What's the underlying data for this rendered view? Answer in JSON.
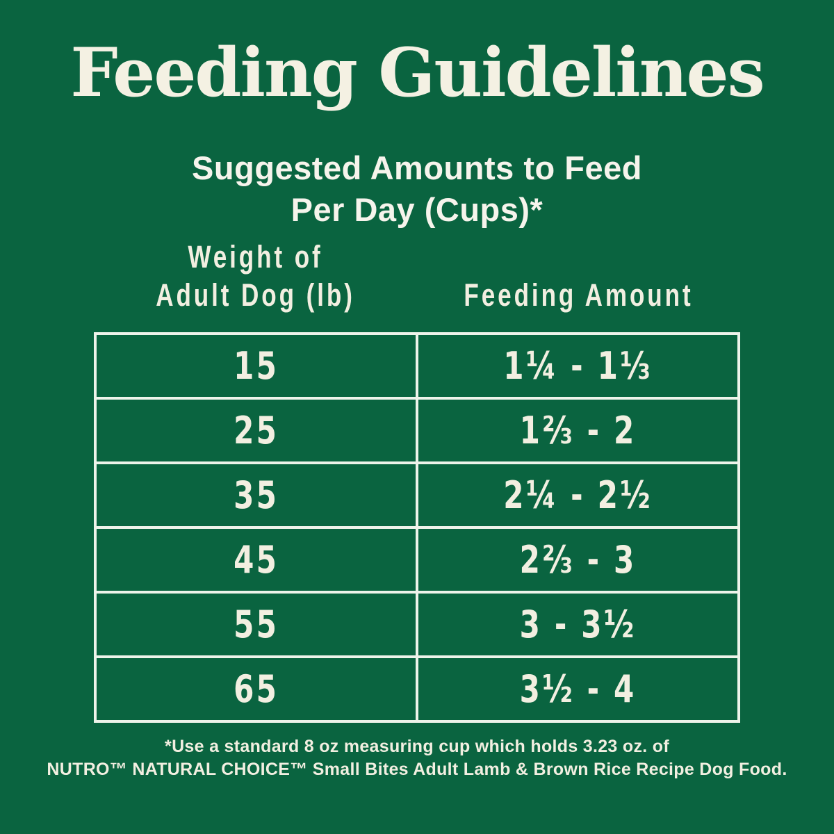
{
  "colors": {
    "background_green": "#0a6440",
    "text_cream": "#f2efe1",
    "table_border": "#eef3ea"
  },
  "header": {
    "title": "Feeding Guidelines",
    "subtitle_line1": "Suggested Amounts to Feed",
    "subtitle_line2": "Per Day (Cups)*"
  },
  "table": {
    "weight_header_line1": "Weight of",
    "weight_header_line2": "Adult Dog (lb)",
    "amount_header": "Feeding Amount",
    "rows": [
      {
        "weight": "15",
        "amount": "1¼ - 1⅓"
      },
      {
        "weight": "25",
        "amount": "1⅔ - 2"
      },
      {
        "weight": "35",
        "amount": "2¼ - 2½"
      },
      {
        "weight": "45",
        "amount": "2⅔ - 3"
      },
      {
        "weight": "55",
        "amount": "3 - 3½"
      },
      {
        "weight": "65",
        "amount": "3½ - 4"
      }
    ]
  },
  "footnote": {
    "line1": "*Use a standard 8 oz measuring cup which holds 3.23 oz. of",
    "line2": "NUTRO™ NATURAL CHOICE™ Small Bites Adult Lamb & Brown Rice Recipe Dog Food."
  },
  "chart_data": {
    "type": "table",
    "title": "Feeding Guidelines",
    "subtitle": "Suggested Amounts to Feed Per Day (Cups)*",
    "columns": [
      "Weight of Adult Dog (lb)",
      "Feeding Amount"
    ],
    "rows": [
      [
        "15",
        "1¼ - 1⅓"
      ],
      [
        "25",
        "1⅔ - 2"
      ],
      [
        "35",
        "2¼ - 2½"
      ],
      [
        "45",
        "2⅔ - 3"
      ],
      [
        "55",
        "3 - 3½"
      ],
      [
        "65",
        "3½ - 4"
      ]
    ],
    "weights_lb": [
      15,
      25,
      35,
      45,
      55,
      65
    ],
    "feeding_cups_min": [
      1.25,
      1.67,
      2.25,
      2.67,
      3,
      3.5
    ],
    "feeding_cups_max": [
      1.33,
      2,
      2.5,
      3,
      3.5,
      4
    ],
    "footnote": "*Use a standard 8 oz measuring cup which holds 3.23 oz. of NUTRO™ NATURAL CHOICE™ Small Bites Adult Lamb & Brown Rice Recipe Dog Food."
  }
}
